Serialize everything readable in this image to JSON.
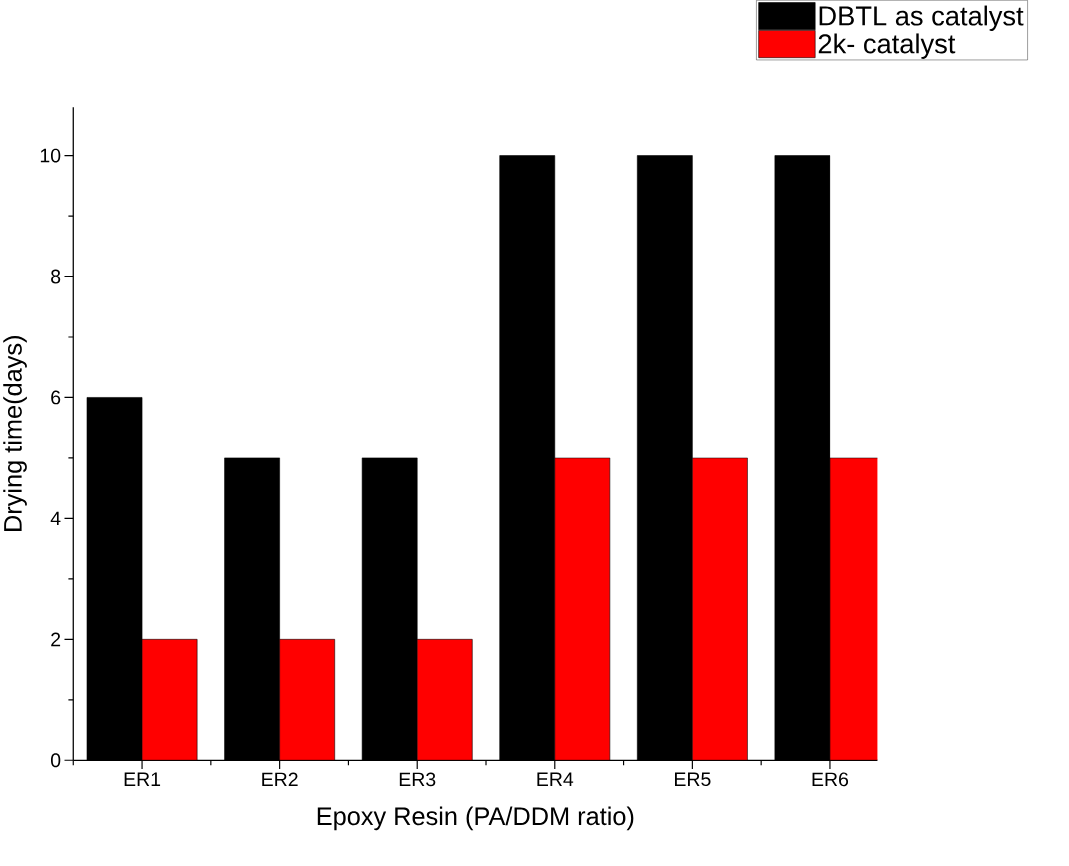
{
  "chart_data": {
    "type": "bar",
    "xlabel": "Epoxy Resin (PA/DDM ratio)",
    "ylabel": "Drying time(days)",
    "categories": [
      "ER1",
      "ER2",
      "ER3",
      "ER4",
      "ER5",
      "ER6"
    ],
    "series": [
      {
        "name": "DBTL as catalyst",
        "color": "#000000",
        "values": [
          6,
          5,
          5,
          10,
          10,
          10
        ]
      },
      {
        "name": "2k- catalyst",
        "color": "#ff0000",
        "values": [
          2,
          2,
          2,
          5,
          5,
          5
        ]
      }
    ],
    "ylim": [
      0,
      10.8
    ],
    "yticks": [
      0,
      2,
      4,
      6,
      8,
      10
    ],
    "grid": false,
    "legend": "top right"
  }
}
